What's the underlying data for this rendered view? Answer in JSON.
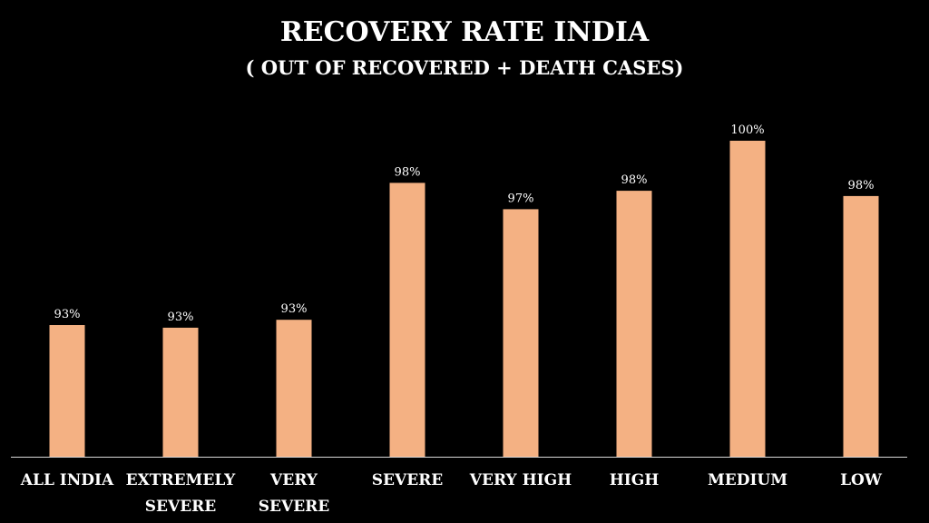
{
  "chart_data": {
    "type": "bar",
    "title": "RECOVERY RATE INDIA",
    "subtitle": "( OUT OF RECOVERED + DEATH CASES)",
    "categories": [
      [
        "ALL INDIA"
      ],
      [
        "EXTREMELY",
        "SEVERE"
      ],
      [
        "VERY",
        "SEVERE"
      ],
      [
        "SEVERE"
      ],
      [
        "VERY HIGH"
      ],
      [
        "HIGH"
      ],
      [
        "MEDIUM"
      ],
      [
        "LOW"
      ]
    ],
    "values": [
      93.0,
      92.9,
      93.2,
      98.4,
      97.4,
      98.1,
      100.0,
      97.9
    ],
    "data_labels": [
      "93%",
      "93%",
      "93%",
      "98%",
      "97%",
      "98%",
      "100%",
      "98%"
    ],
    "xlabel": "",
    "ylabel": "",
    "ylim": [
      88,
      101
    ],
    "grid": false,
    "legend": "none",
    "bar_color": "#F4B183",
    "background": "#000000"
  }
}
